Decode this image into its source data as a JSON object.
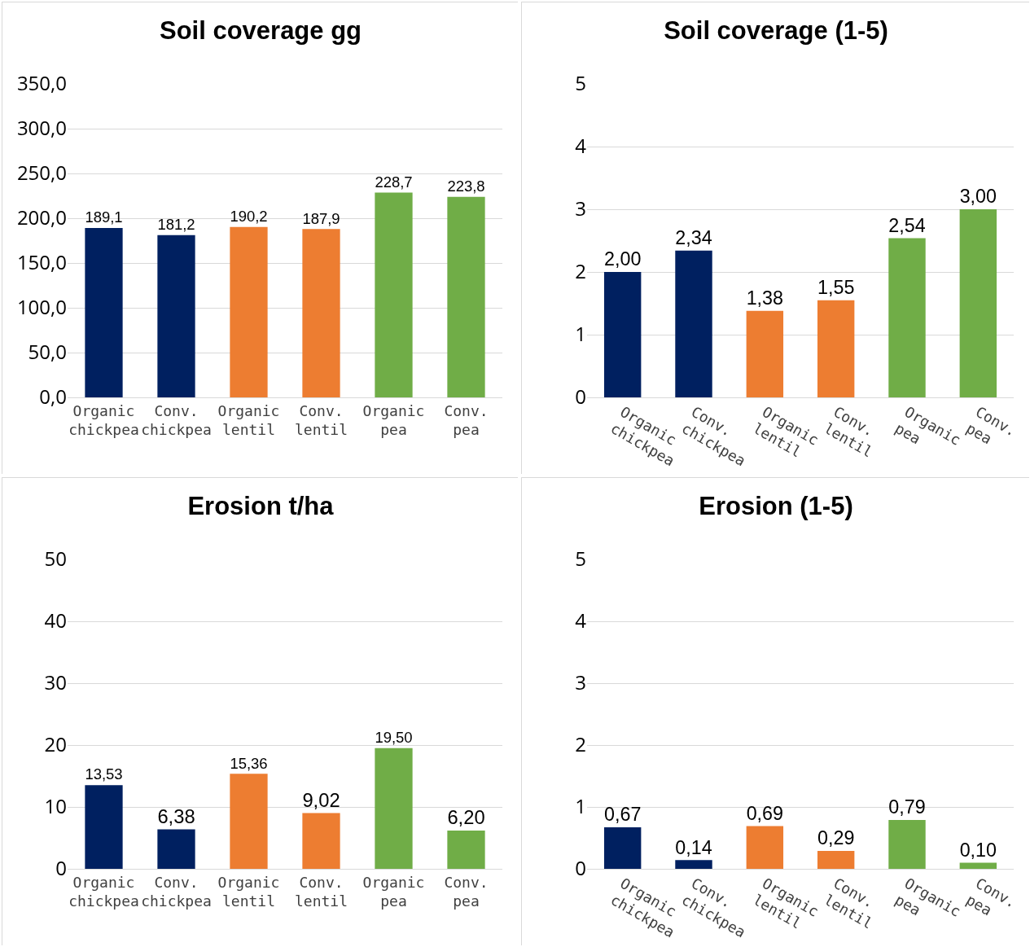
{
  "chart_data": [
    {
      "type": "bar",
      "title": "Soil coverage gg",
      "categories": [
        "Organic chickpea",
        "Conv. chickpea",
        "Organic lentil",
        "Conv. lentil",
        "Organic pea",
        "Conv. pea"
      ],
      "values": [
        189.1,
        181.2,
        190.2,
        187.9,
        228.7,
        223.8
      ],
      "colors": [
        "#002060",
        "#002060",
        "#ed7d31",
        "#ed7d31",
        "#70ad47",
        "#70ad47"
      ],
      "value_labels": [
        "189,1",
        "181,2",
        "190,2",
        "187,9",
        "228,7",
        "223,8"
      ],
      "ylim": [
        0,
        350
      ],
      "yticks": [
        {
          "value": 0,
          "label": "0,0"
        },
        {
          "value": 50,
          "label": "50,0"
        },
        {
          "value": 100,
          "label": "100,0"
        },
        {
          "value": 150,
          "label": "150,0"
        },
        {
          "value": 200,
          "label": "200,0"
        },
        {
          "value": 250,
          "label": "250,0"
        },
        {
          "value": 300,
          "label": "300,0"
        },
        {
          "value": 350,
          "label": "350,0"
        }
      ],
      "grid": "y"
    },
    {
      "type": "bar",
      "title": "Soil coverage (1-5)",
      "categories": [
        "Organic chickpea",
        "Conv. chickpea",
        "Organic lentil",
        "Conv. lentil",
        "Organic pea",
        "Conv. pea"
      ],
      "values": [
        2.0,
        2.34,
        1.38,
        1.55,
        2.54,
        3.0
      ],
      "colors": [
        "#002060",
        "#002060",
        "#ed7d31",
        "#ed7d31",
        "#70ad47",
        "#70ad47"
      ],
      "value_labels": [
        "2,00",
        "2,34",
        "1,38",
        "1,55",
        "2,54",
        "3,00"
      ],
      "ylim": [
        0,
        5
      ],
      "yticks": [
        0,
        1,
        2,
        3,
        4,
        5
      ],
      "grid": "y"
    },
    {
      "type": "bar",
      "title": "Erosion t/ha",
      "categories": [
        "Organic chickpea",
        "Conv. chickpea",
        "Organic lentil",
        "Conv. lentil",
        "Organic pea",
        "Conv. pea"
      ],
      "values": [
        13.53,
        6.38,
        15.36,
        9.02,
        19.5,
        6.2
      ],
      "colors": [
        "#002060",
        "#002060",
        "#ed7d31",
        "#ed7d31",
        "#70ad47",
        "#70ad47"
      ],
      "value_labels": [
        "13,53",
        "6,38",
        "15,36",
        "9,02",
        "19,50",
        "6,20"
      ],
      "ylim": [
        0,
        50
      ],
      "yticks": [
        0,
        10,
        20,
        30,
        40,
        50
      ],
      "grid": "y"
    },
    {
      "type": "bar",
      "title": "Erosion (1-5)",
      "categories": [
        "Organic chickpea",
        "Conv. chickpea",
        "Organic lentil",
        "Conv. lentil",
        "Organic pea",
        "Conv. pea"
      ],
      "values": [
        0.67,
        0.14,
        0.69,
        0.29,
        0.79,
        0.1
      ],
      "colors": [
        "#002060",
        "#002060",
        "#ed7d31",
        "#ed7d31",
        "#70ad47",
        "#70ad47"
      ],
      "value_labels": [
        "0,67",
        "0,14",
        "0,69",
        "0,29",
        "0,79",
        "0,10"
      ],
      "ylim": [
        0,
        5
      ],
      "yticks": [
        0,
        1,
        2,
        3,
        4,
        5
      ],
      "grid": "y"
    }
  ]
}
